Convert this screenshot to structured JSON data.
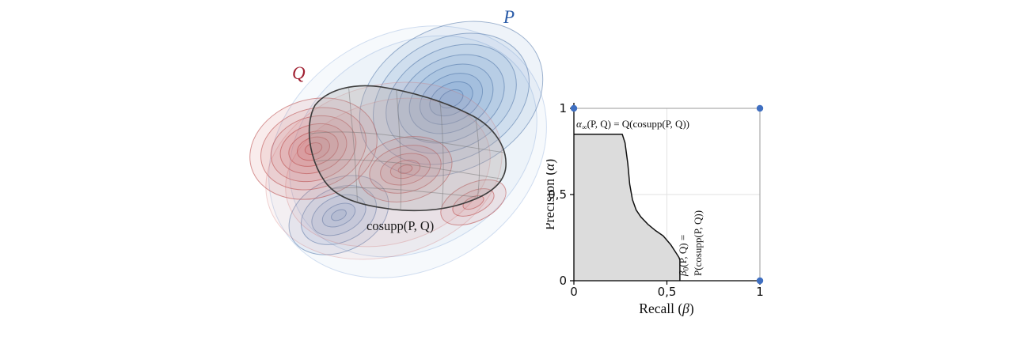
{
  "figure": {
    "left": {
      "label_p": "P",
      "label_q": "Q",
      "label_cosupp": "cosupp(P, Q)"
    },
    "chart": {
      "x_tick_labels": [
        "0",
        "0,5",
        "1"
      ],
      "y_tick_labels": [
        "0",
        "0,5",
        "1"
      ],
      "y_title": {
        "pre": "Precision (",
        "sym": "α",
        "post": ")"
      },
      "x_title": {
        "pre": "Recall (",
        "sym": "β",
        "post": ")"
      },
      "annotation_alpha": {
        "sym": "α",
        "sub": "∞",
        "rest": "(P, Q) = Q(cosupp(P, Q))"
      },
      "annotation_beta": {
        "sym": "β",
        "sub": "0",
        "rest": "(P, Q) =",
        "line2": "P(cosupp(P, Q))"
      }
    }
  },
  "colors": {
    "p_blue": "#2b5ca8",
    "q_red": "#a12233",
    "dot_blue": "#3f6fc1",
    "area_gray": "#dcdcdc",
    "cosupp_outline": "#3c3c3c"
  },
  "chart_data": {
    "type": "line",
    "title": "",
    "xlabel": "Recall (β)",
    "ylabel": "Precision (α)",
    "xlim": [
      0,
      1
    ],
    "ylim": [
      0,
      1
    ],
    "x_ticks": [
      0,
      0.5,
      1
    ],
    "y_ticks": [
      0,
      0.5,
      1
    ],
    "grid": true,
    "decimal_separator": ",",
    "curve": [
      [
        0,
        0.85
      ],
      [
        0.26,
        0.85
      ],
      [
        0.275,
        0.8
      ],
      [
        0.29,
        0.68
      ],
      [
        0.3,
        0.56
      ],
      [
        0.315,
        0.47
      ],
      [
        0.335,
        0.41
      ],
      [
        0.36,
        0.37
      ],
      [
        0.4,
        0.325
      ],
      [
        0.44,
        0.29
      ],
      [
        0.48,
        0.26
      ],
      [
        0.52,
        0.21
      ],
      [
        0.55,
        0.16
      ],
      [
        0.565,
        0.135
      ],
      [
        0.57,
        0.12
      ],
      [
        0.57,
        0
      ]
    ],
    "area_under_curve_shaded": true,
    "corner_points": [
      [
        0,
        1
      ],
      [
        1,
        1
      ],
      [
        1,
        0
      ]
    ],
    "annotations": [
      {
        "text": "α∞(P, Q) = Q(cosupp(P, Q))",
        "x": 0.02,
        "y": 0.9,
        "rotation": 0
      },
      {
        "text": "β0(P, Q) = P(cosupp(P, Q))",
        "x": 0.63,
        "y": 0.05,
        "rotation": -90
      }
    ]
  }
}
